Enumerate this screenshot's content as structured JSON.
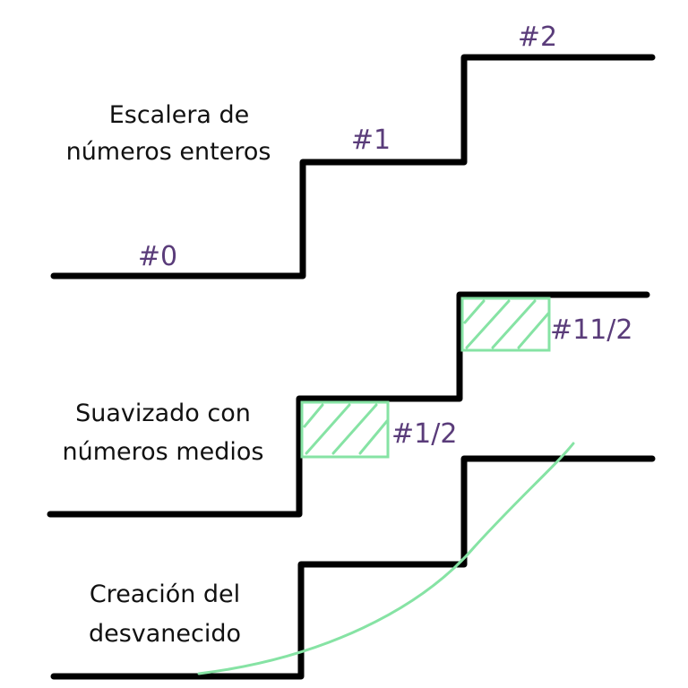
{
  "diagram": {
    "colors": {
      "stair": "#000000",
      "step_label": "#5a3c7a",
      "highlight": "#86e3a4",
      "text": "#111111"
    },
    "panel1": {
      "caption_line1": "Escalera de",
      "caption_line2": "números enteros",
      "step0": "#0",
      "step1": "#1",
      "step2": "#2"
    },
    "panel2": {
      "caption_line1": "Suavizado con",
      "caption_line2": "números medios",
      "half_label": "#1/2",
      "one_half_label": "#11/2"
    },
    "panel3": {
      "caption_line1": "Creación del",
      "caption_line2": "desvanecido"
    }
  }
}
